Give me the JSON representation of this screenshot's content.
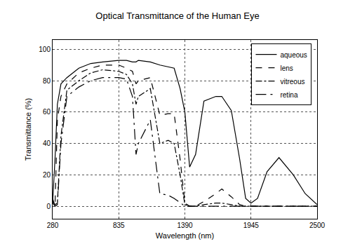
{
  "chart_data": {
    "type": "line",
    "title": "Optical Transmittance of the Human Eye",
    "x_label": "Wavelength (nm)",
    "y_label": "Transmittance (%)",
    "x": [
      280,
      300,
      320,
      350,
      400,
      500,
      600,
      700,
      835,
      900,
      950,
      980,
      1000,
      1100,
      1180,
      1250,
      1300,
      1350,
      1390,
      1430,
      1480,
      1550,
      1650,
      1700,
      1780,
      1850,
      1900,
      1945,
      2000,
      2080,
      2180,
      2300,
      2400,
      2500
    ],
    "series": [
      {
        "name": "aqueous",
        "color": "#000000",
        "line_style": "solid",
        "values": [
          2,
          30,
          65,
          78,
          82,
          88,
          91,
          92,
          93,
          93,
          92,
          92,
          93,
          92,
          90,
          89,
          88,
          75,
          60,
          25,
          33,
          67,
          70,
          70,
          61,
          30,
          5,
          2,
          5,
          22,
          31,
          20,
          8,
          1
        ]
      },
      {
        "name": "lens",
        "color": "#000000",
        "line_style": "dash",
        "values": [
          5,
          0,
          55,
          70,
          78,
          85,
          88,
          90,
          90,
          88,
          86,
          78,
          80,
          82,
          58,
          59,
          59,
          30,
          2,
          0,
          0,
          3,
          8,
          11,
          6,
          1,
          0,
          0,
          0,
          0,
          0,
          0,
          0,
          0
        ]
      },
      {
        "name": "vitreous",
        "color": "#000000",
        "line_style": "dashdot",
        "values": [
          3,
          1,
          2,
          45,
          74,
          80,
          85,
          87,
          86,
          84,
          78,
          65,
          70,
          75,
          40,
          42,
          40,
          20,
          1,
          0,
          0,
          1,
          2,
          2,
          1,
          0,
          0,
          0,
          0,
          0,
          0,
          0,
          0,
          0
        ]
      },
      {
        "name": "retina",
        "color": "#000000",
        "line_style": "longdashdot",
        "values": [
          2,
          0,
          1,
          40,
          70,
          76,
          80,
          82,
          82,
          81,
          70,
          33,
          40,
          55,
          8,
          7,
          5,
          2,
          0,
          0,
          0,
          0,
          0,
          0,
          0,
          0,
          0,
          0,
          0,
          0,
          0,
          0,
          0,
          0
        ]
      }
    ],
    "xlim": [
      280,
      2500
    ],
    "xticks": [
      280,
      835,
      1390,
      1945,
      2500
    ],
    "ylim": [
      -8,
      106
    ],
    "yticks": [
      0,
      20,
      40,
      60,
      80,
      100
    ],
    "grid": true,
    "legend": "top-right"
  }
}
